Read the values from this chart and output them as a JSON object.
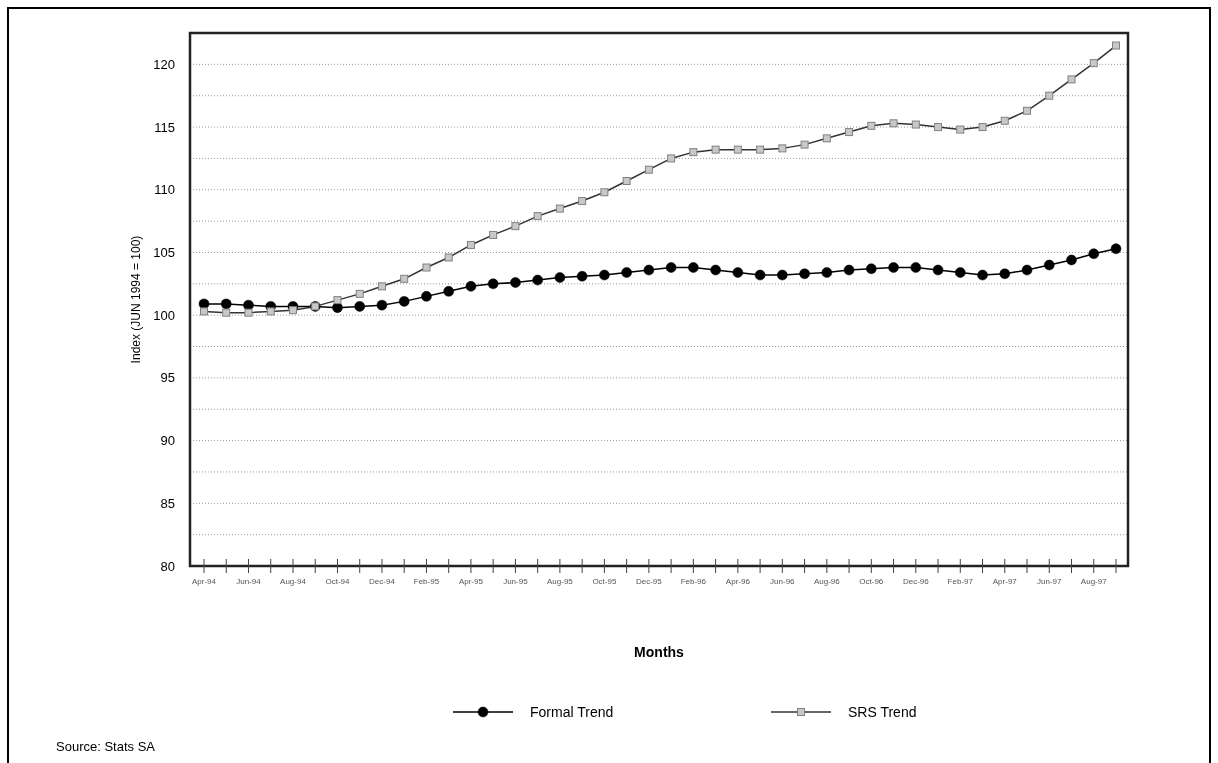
{
  "chart_data": {
    "type": "line",
    "xlabel": "Months",
    "ylabel": "Index (JUN 1994 = 100)",
    "annotations": [
      "Source: Stats SA"
    ],
    "categories": [
      "Apr-94",
      null,
      "Jun-94",
      null,
      "Aug-94",
      null,
      "Oct-94",
      null,
      "Dec-94",
      null,
      "Feb-95",
      null,
      "Apr-95",
      null,
      "Jun-95",
      null,
      "Aug-95",
      null,
      "Oct-95",
      null,
      "Dec-95",
      null,
      "Feb-96",
      null,
      "Apr-96",
      null,
      "Jun-96",
      null,
      "Aug-96",
      null,
      "Oct-96",
      null,
      "Dec-96",
      null,
      "Feb-97",
      null,
      "Apr-97",
      null,
      "Jun-97",
      null,
      "Aug-97",
      null
    ],
    "series": [
      {
        "name": "Formal Trend",
        "color": "#000000",
        "marker": "circle",
        "values": [
          100.9,
          100.9,
          100.8,
          100.7,
          100.7,
          100.7,
          100.6,
          100.7,
          100.8,
          101.1,
          101.5,
          101.9,
          102.3,
          102.5,
          102.6,
          102.8,
          103.0,
          103.1,
          103.2,
          103.4,
          103.6,
          103.8,
          103.8,
          103.6,
          103.4,
          103.2,
          103.2,
          103.3,
          103.4,
          103.6,
          103.7,
          103.8,
          103.8,
          103.6,
          103.4,
          103.2,
          103.3,
          103.6,
          104.0,
          104.4,
          104.9,
          105.3
        ]
      },
      {
        "name": "SRS Trend",
        "color": "#808080",
        "marker": "square",
        "values": [
          100.3,
          100.2,
          100.2,
          100.3,
          100.4,
          100.7,
          101.2,
          101.7,
          102.3,
          102.9,
          103.8,
          104.6,
          105.6,
          106.4,
          107.1,
          107.9,
          108.5,
          109.1,
          109.8,
          110.7,
          111.6,
          112.5,
          113.0,
          113.2,
          113.2,
          113.2,
          113.3,
          113.6,
          114.1,
          114.6,
          115.1,
          115.3,
          115.2,
          115.0,
          114.8,
          115.0,
          115.5,
          116.3,
          117.5,
          118.8,
          120.1,
          121.5
        ]
      }
    ],
    "ylim": [
      80,
      122.5
    ],
    "yticks": [
      80,
      {
        "value": 82.5,
        "label": null
      },
      85,
      {
        "value": 87.5,
        "label": null
      },
      90,
      {
        "value": 92.5,
        "label": null
      },
      95,
      {
        "value": 97.5,
        "label": null
      },
      100,
      {
        "value": 102.5,
        "label": null
      },
      105,
      {
        "value": 107.5,
        "label": null
      },
      110,
      {
        "value": 112.5,
        "label": null
      },
      115,
      {
        "value": 117.5,
        "label": null
      },
      120
    ],
    "grid": "y",
    "legend": "bottom",
    "line_style": "solid"
  }
}
